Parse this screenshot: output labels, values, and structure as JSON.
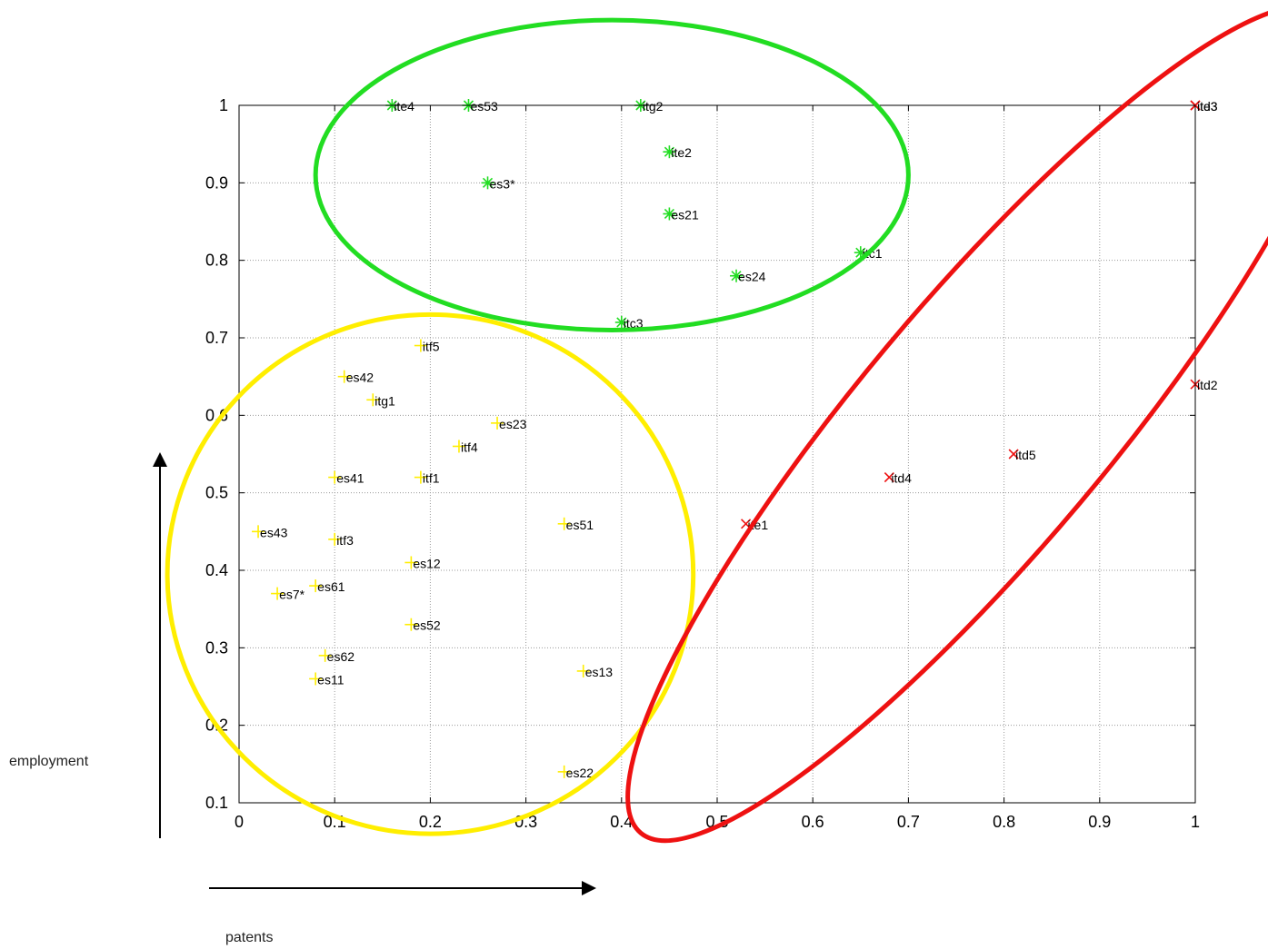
{
  "chart_data": {
    "type": "scatter",
    "xlabel": "patents",
    "ylabel": "employment",
    "xlim": [
      0,
      1
    ],
    "ylim": [
      0.1,
      1
    ],
    "x_ticks": [
      0,
      0.1,
      0.2,
      0.3,
      0.4,
      0.5,
      0.6,
      0.7,
      0.8,
      0.9,
      1
    ],
    "y_ticks": [
      0.1,
      0.2,
      0.3,
      0.4,
      0.5,
      0.6,
      0.7,
      0.8,
      0.9,
      1
    ],
    "x_tick_labels": [
      "0",
      "0.1",
      "0.2",
      "0.3",
      "0.4",
      "0.5",
      "0.6",
      "0.7",
      "0.8",
      "0.9",
      "1"
    ],
    "y_tick_labels": [
      "0.1",
      "0.2",
      "0.3",
      "0.4",
      "0.5",
      "0.6",
      "0.7",
      "0.8",
      "0.9",
      "1"
    ],
    "grid": true,
    "colors": {
      "green": "#22dd22",
      "yellow": "#ffee00",
      "red": "#ee1111"
    },
    "series": [
      {
        "color": "#22dd22",
        "marker": "star",
        "points": [
          {
            "label": "ite4",
            "x": 0.16,
            "y": 1.0
          },
          {
            "label": "es53",
            "x": 0.24,
            "y": 1.0
          },
          {
            "label": "itg2",
            "x": 0.42,
            "y": 1.0
          },
          {
            "label": "ite2",
            "x": 0.45,
            "y": 0.94
          },
          {
            "label": "es3*",
            "x": 0.26,
            "y": 0.9
          },
          {
            "label": "es21",
            "x": 0.45,
            "y": 0.86
          },
          {
            "label": "itc1",
            "x": 0.65,
            "y": 0.81
          },
          {
            "label": "es24",
            "x": 0.52,
            "y": 0.78
          },
          {
            "label": "itc3",
            "x": 0.4,
            "y": 0.72
          }
        ]
      },
      {
        "color": "#ffee00",
        "marker": "plus",
        "points": [
          {
            "label": "itf5",
            "x": 0.19,
            "y": 0.69
          },
          {
            "label": "es42",
            "x": 0.11,
            "y": 0.65
          },
          {
            "label": "itg1",
            "x": 0.14,
            "y": 0.62
          },
          {
            "label": "es23",
            "x": 0.27,
            "y": 0.59
          },
          {
            "label": "itf4",
            "x": 0.23,
            "y": 0.56
          },
          {
            "label": "es41",
            "x": 0.1,
            "y": 0.52
          },
          {
            "label": "itf1",
            "x": 0.19,
            "y": 0.52
          },
          {
            "label": "es51",
            "x": 0.34,
            "y": 0.46
          },
          {
            "label": "es43",
            "x": 0.02,
            "y": 0.45
          },
          {
            "label": "itf3",
            "x": 0.1,
            "y": 0.44
          },
          {
            "label": "es12",
            "x": 0.18,
            "y": 0.41
          },
          {
            "label": "es61",
            "x": 0.08,
            "y": 0.38
          },
          {
            "label": "es7*",
            "x": 0.04,
            "y": 0.37
          },
          {
            "label": "es52",
            "x": 0.18,
            "y": 0.33
          },
          {
            "label": "es62",
            "x": 0.09,
            "y": 0.29
          },
          {
            "label": "es13",
            "x": 0.36,
            "y": 0.27
          },
          {
            "label": "es11",
            "x": 0.08,
            "y": 0.26
          },
          {
            "label": "es22",
            "x": 0.34,
            "y": 0.14
          }
        ]
      },
      {
        "color": "#ee1111",
        "marker": "x",
        "points": [
          {
            "label": "itd3",
            "x": 1.0,
            "y": 1.0
          },
          {
            "label": "ite3",
            "x": 1.0,
            "y": 1.0
          },
          {
            "label": "itd2",
            "x": 1.0,
            "y": 0.64
          },
          {
            "label": "itd5",
            "x": 0.81,
            "y": 0.55
          },
          {
            "label": "itd4",
            "x": 0.68,
            "y": 0.52
          },
          {
            "label": "ite1",
            "x": 0.53,
            "y": 0.46
          }
        ]
      }
    ],
    "cluster_outlines": [
      {
        "color": "#22dd22",
        "center": [
          0.39,
          0.91
        ],
        "rx": 0.31,
        "ry": 0.2,
        "rotation_deg": 0
      },
      {
        "color": "#ffee00",
        "center": [
          0.2,
          0.395
        ],
        "rx": 0.275,
        "ry": 0.335,
        "rotation_deg": 0
      },
      {
        "color": "#ee1111",
        "center": [
          0.78,
          0.59
        ],
        "rx": 0.56,
        "ry": 0.13,
        "rotation_deg": -50
      }
    ]
  }
}
